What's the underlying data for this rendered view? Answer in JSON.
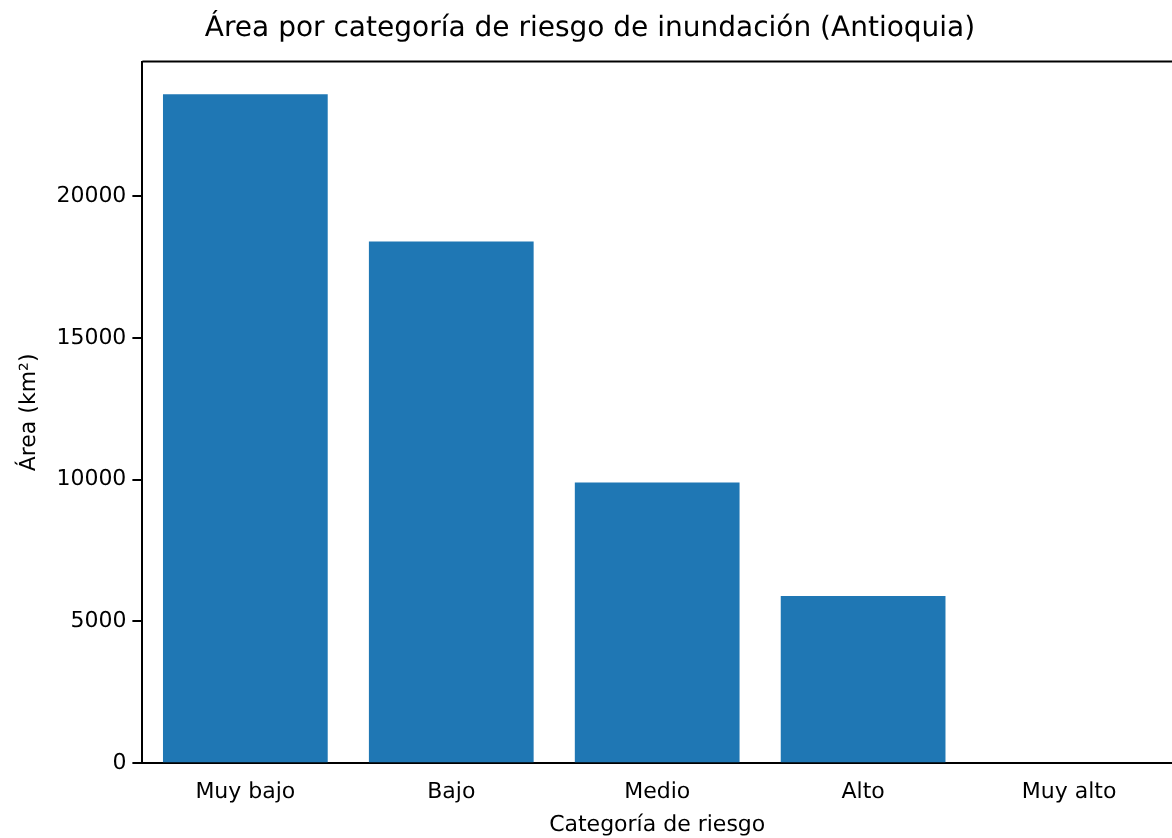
{
  "chart_data": {
    "type": "bar",
    "title": "Área por categoría de riesgo de inundación (Antioquia)",
    "xlabel": "Categoría de riesgo",
    "ylabel": "Área (km²)",
    "categories": [
      "Muy bajo",
      "Bajo",
      "Medio",
      "Alto",
      "Muy alto"
    ],
    "values": [
      23600,
      18400,
      9900,
      5900,
      0
    ],
    "color": "#1f77b4",
    "ylim": [
      0,
      24750
    ],
    "yticks": [
      0,
      5000,
      10000,
      15000,
      20000
    ],
    "grid": false,
    "legend": false
  }
}
